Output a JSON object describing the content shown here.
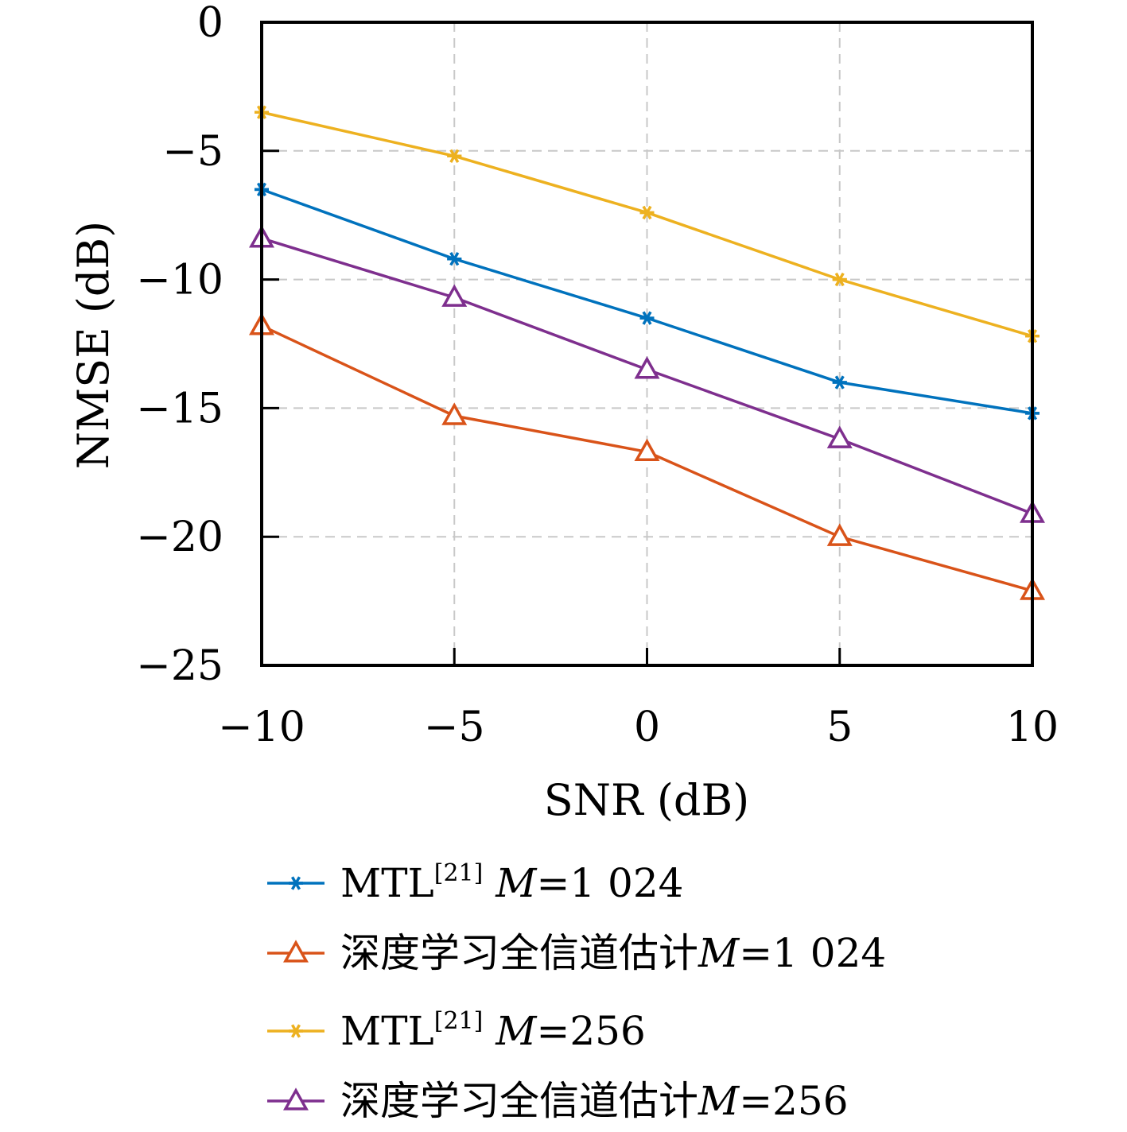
{
  "chart_data": {
    "type": "line",
    "xlabel": "SNR (dB)",
    "ylabel": "NMSE (dB)",
    "xlim": [
      -10,
      10
    ],
    "ylim": [
      -25,
      0
    ],
    "x_ticks": [
      "−10",
      "−5",
      "0",
      "5",
      "10"
    ],
    "y_ticks": [
      "0",
      "−5",
      "−10",
      "−15",
      "−20",
      "−25"
    ],
    "grid": true,
    "legend_position": "bottom",
    "x": [
      -10,
      -5,
      0,
      5,
      10
    ],
    "series": [
      {
        "name": "MTL[21] M=1 024",
        "label_parts": {
          "prefix": "MTL",
          "sup": "[21]",
          "var": "M",
          "eq": "=1 024"
        },
        "color": "#0072BD",
        "marker": "asterisk",
        "values": [
          -6.5,
          -9.2,
          -11.5,
          -14.0,
          -15.2
        ]
      },
      {
        "name": "深度学习全信道估计M=1 024",
        "label_parts": {
          "prefix": "深度学习全信道估计",
          "sup": "",
          "var": "M",
          "eq": "=1 024"
        },
        "color": "#D95319",
        "marker": "triangle",
        "values": [
          -11.8,
          -15.3,
          -16.7,
          -20.0,
          -22.1
        ]
      },
      {
        "name": "MTL[21] M=256",
        "label_parts": {
          "prefix": "MTL",
          "sup": "[21]",
          "var": "M",
          "eq": "=256"
        },
        "color": "#EDB120",
        "marker": "asterisk",
        "values": [
          -3.5,
          -5.2,
          -7.4,
          -10.0,
          -12.2
        ]
      },
      {
        "name": "深度学习全信道估计M=256",
        "label_parts": {
          "prefix": "深度学习全信道估计",
          "sup": "",
          "var": "M",
          "eq": "=256"
        },
        "color": "#7E2F8E",
        "marker": "triangle",
        "values": [
          -8.4,
          -10.7,
          -13.5,
          -16.2,
          -19.1
        ]
      }
    ]
  }
}
